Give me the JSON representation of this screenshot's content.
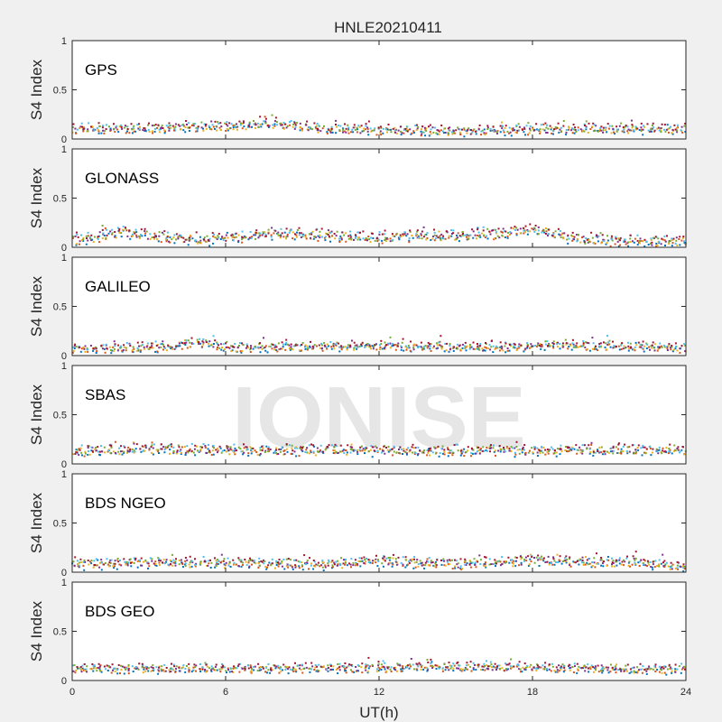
{
  "title": "HNLE20210411",
  "watermark": "IONISE",
  "chart_data": {
    "type": "scatter",
    "title": "HNLE20210411",
    "xlabel": "UT(h)",
    "xlim": [
      0,
      24
    ],
    "xticks": [
      0,
      6,
      12,
      18,
      24
    ],
    "grid": false,
    "legend": "none",
    "series_colors": [
      "#0072BD",
      "#D95319",
      "#EDB120",
      "#7E2F8E",
      "#77AC30",
      "#4DBEEE",
      "#A2142F"
    ],
    "panels": [
      {
        "label": "GPS",
        "ylabel": "S4 Index",
        "ylim": [
          0,
          1
        ],
        "yticks": [
          0,
          0.5,
          1
        ],
        "baseline_range": [
          0.06,
          0.14
        ],
        "profile": [
          [
            0,
            0.1
          ],
          [
            3,
            0.11
          ],
          [
            7,
            0.14
          ],
          [
            8,
            0.15
          ],
          [
            10,
            0.1
          ],
          [
            15,
            0.08
          ],
          [
            19,
            0.1
          ],
          [
            24,
            0.1
          ]
        ]
      },
      {
        "label": "GLONASS",
        "ylabel": "S4 Index",
        "ylim": [
          0,
          1
        ],
        "yticks": [
          0,
          0.5,
          1
        ],
        "baseline_range": [
          0.05,
          0.15
        ],
        "profile": [
          [
            0,
            0.07
          ],
          [
            2,
            0.15
          ],
          [
            4,
            0.09
          ],
          [
            6,
            0.08
          ],
          [
            8,
            0.14
          ],
          [
            12,
            0.1
          ],
          [
            16,
            0.12
          ],
          [
            18,
            0.18
          ],
          [
            20,
            0.07
          ],
          [
            24,
            0.06
          ]
        ]
      },
      {
        "label": "GALILEO",
        "ylabel": "S4 Index",
        "ylim": [
          0,
          1
        ],
        "yticks": [
          0,
          0.5,
          1
        ],
        "baseline_range": [
          0.05,
          0.12
        ],
        "profile": [
          [
            0,
            0.07
          ],
          [
            4,
            0.09
          ],
          [
            5,
            0.14
          ],
          [
            6,
            0.08
          ],
          [
            12,
            0.1
          ],
          [
            16,
            0.08
          ],
          [
            19,
            0.11
          ],
          [
            22,
            0.09
          ],
          [
            24,
            0.07
          ]
        ]
      },
      {
        "label": "SBAS",
        "ylabel": "S4 Index",
        "ylim": [
          0,
          1
        ],
        "yticks": [
          0,
          0.5,
          1
        ],
        "baseline_range": [
          0.07,
          0.16
        ],
        "profile": [
          [
            0,
            0.13
          ],
          [
            3,
            0.15
          ],
          [
            12,
            0.13
          ],
          [
            24,
            0.14
          ]
        ]
      },
      {
        "label": "BDS NGEO",
        "ylabel": "S4 Index",
        "ylim": [
          0,
          1
        ],
        "yticks": [
          0,
          0.5,
          1
        ],
        "baseline_range": [
          0.04,
          0.13
        ],
        "profile": [
          [
            0,
            0.08
          ],
          [
            3,
            0.1
          ],
          [
            6,
            0.09
          ],
          [
            10,
            0.08
          ],
          [
            12,
            0.12
          ],
          [
            15,
            0.08
          ],
          [
            18,
            0.12
          ],
          [
            22,
            0.1
          ],
          [
            24,
            0.06
          ]
        ]
      },
      {
        "label": "BDS GEO",
        "ylabel": "S4 Index",
        "ylim": [
          0,
          1
        ],
        "yticks": [
          0,
          0.5,
          1
        ],
        "baseline_range": [
          0.06,
          0.13
        ],
        "profile": [
          [
            0,
            0.12
          ],
          [
            8,
            0.12
          ],
          [
            16,
            0.14
          ],
          [
            24,
            0.11
          ]
        ]
      }
    ]
  }
}
